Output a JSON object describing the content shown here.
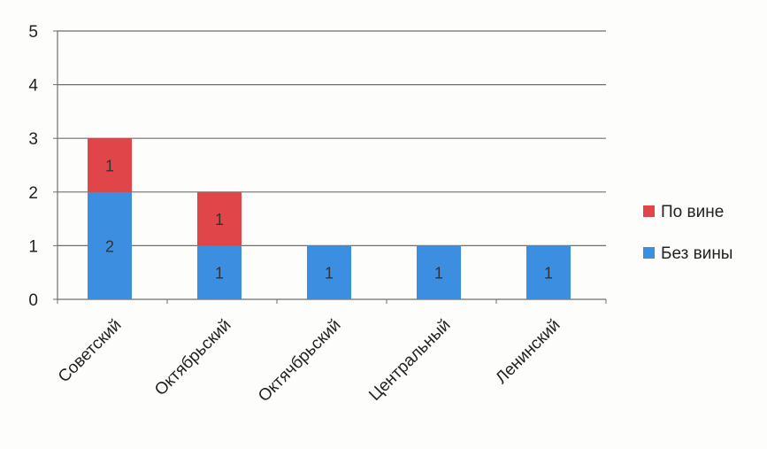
{
  "chart_data": {
    "type": "bar",
    "stacked": true,
    "categories": [
      "Советский",
      "Октябрьский",
      "Октячбрьский",
      "Центральный",
      "Ленинский"
    ],
    "series": [
      {
        "name": "Без вины",
        "values": [
          2,
          1,
          1,
          1,
          1
        ],
        "color": "#3c8fe0"
      },
      {
        "name": "По вине",
        "values": [
          1,
          1,
          0,
          0,
          0
        ],
        "color": "#e0454a"
      }
    ],
    "ylim": [
      0,
      5
    ],
    "yticks": [
      0,
      1,
      2,
      3,
      4,
      5
    ],
    "grid": true,
    "legend": "right",
    "data_labels": true
  }
}
